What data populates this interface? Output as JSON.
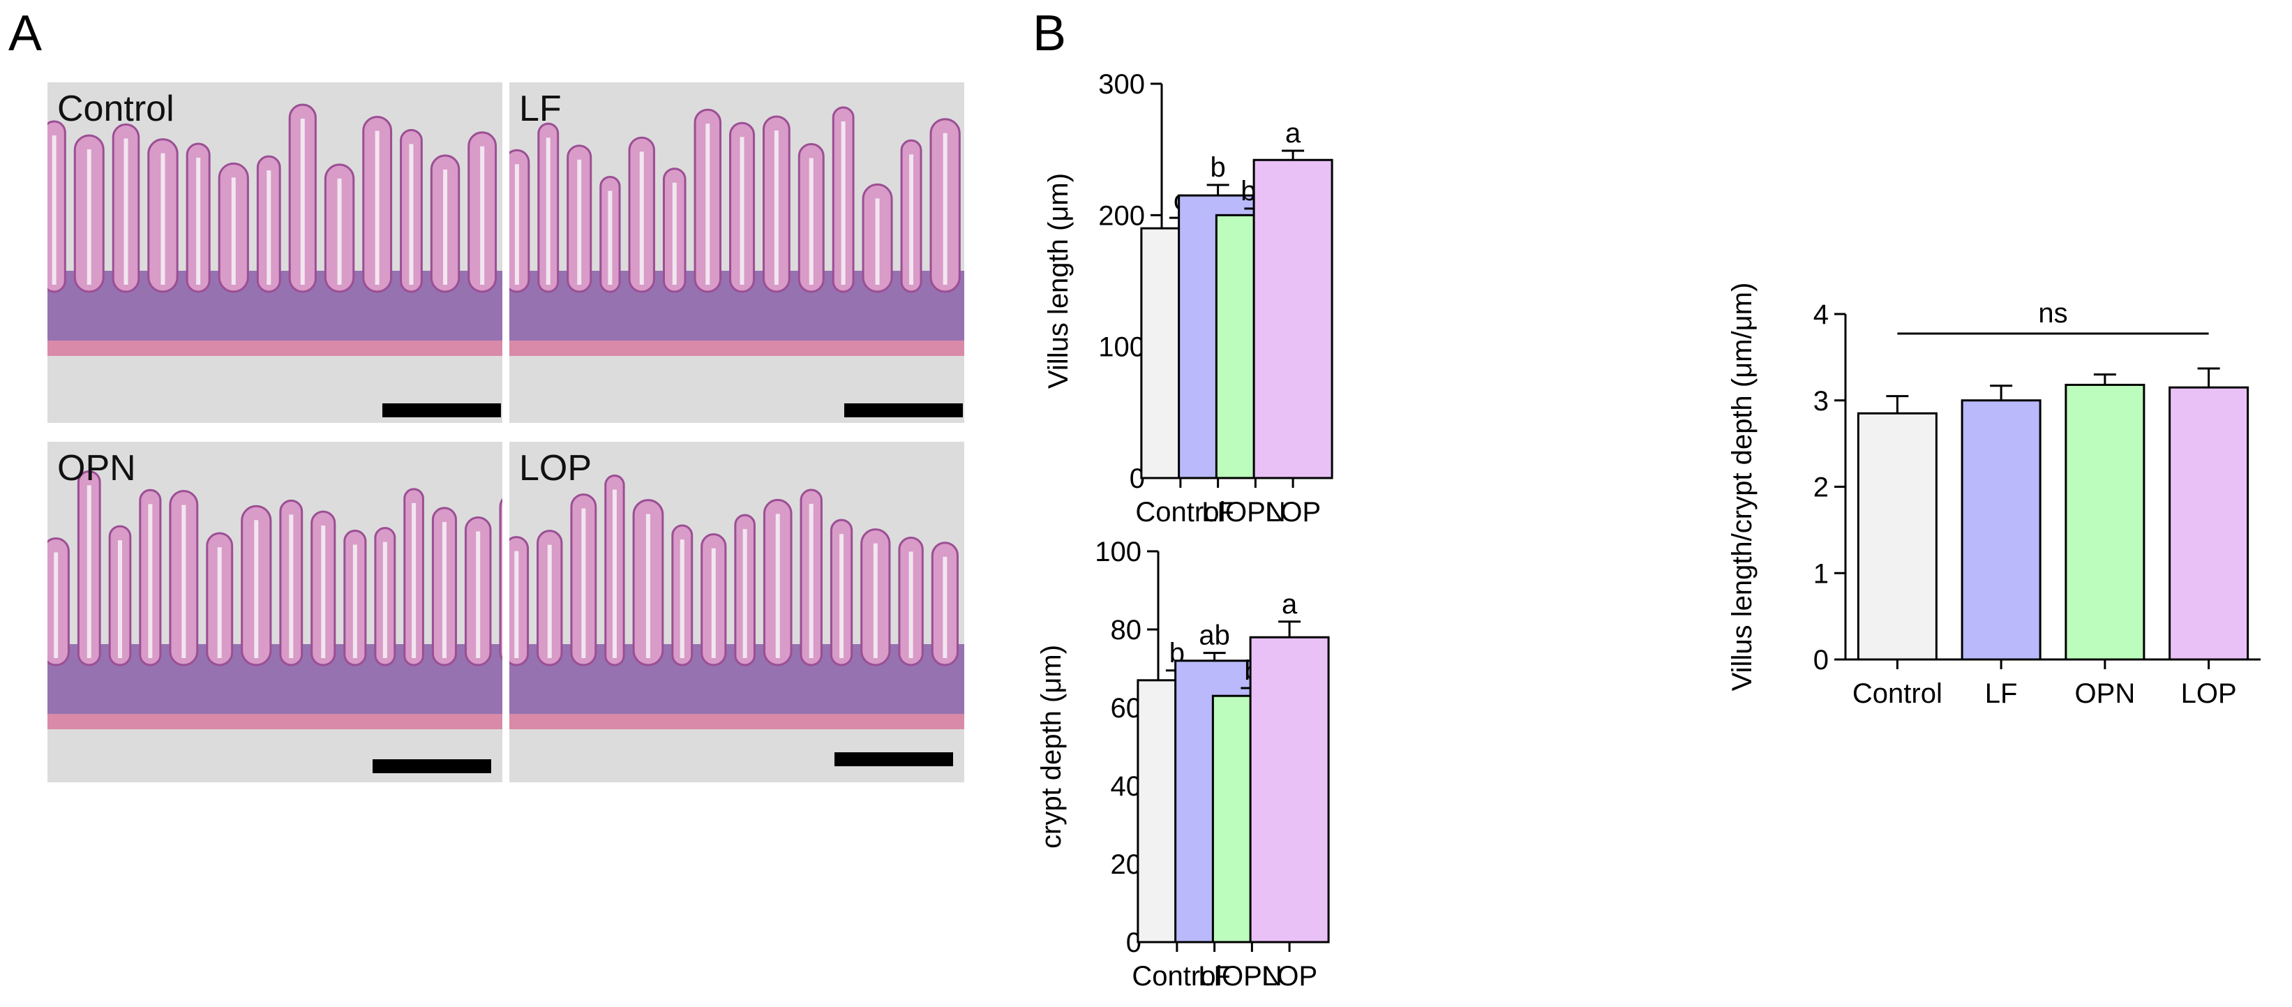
{
  "panels": {
    "a_label": "A",
    "b_label": "B"
  },
  "micrographs": [
    {
      "label": "Control"
    },
    {
      "label": "LF"
    },
    {
      "label": "OPN"
    },
    {
      "label": "LOP"
    }
  ],
  "colors": {
    "Control": "#f2f2f2",
    "LF": "#b9b9fb",
    "OPN": "#bcfcbc",
    "LOP": "#e9c1f7",
    "tissue_pink": "#d99bc8",
    "tissue_purple": "#8a5fa8",
    "background_gray": "#dcdcdc"
  },
  "chart_data": [
    {
      "type": "bar",
      "categories": [
        "Control",
        "LF",
        "OPN",
        "LOP"
      ],
      "values": [
        190,
        215,
        200,
        242
      ],
      "errors": [
        8,
        8,
        5,
        7
      ],
      "annotations": [
        "c",
        "b",
        "bc",
        "a"
      ],
      "ylabel": "Villus length (μm)",
      "ylim": [
        0,
        300
      ],
      "yticks": [
        0,
        100,
        200,
        300
      ]
    },
    {
      "type": "bar",
      "categories": [
        "Control",
        "LF",
        "OPN",
        "LOP"
      ],
      "values": [
        67,
        72,
        63,
        78
      ],
      "errors": [
        2.5,
        2,
        2,
        4
      ],
      "annotations": [
        "b",
        "ab",
        "b",
        "a"
      ],
      "ylabel": "crypt depth (μm)",
      "ylim": [
        0,
        100
      ],
      "yticks": [
        0,
        20,
        40,
        60,
        80,
        100
      ]
    },
    {
      "type": "bar",
      "categories": [
        "Control",
        "LF",
        "OPN",
        "LOP"
      ],
      "values": [
        2.85,
        3.0,
        3.18,
        3.15
      ],
      "errors": [
        0.2,
        0.17,
        0.12,
        0.22
      ],
      "annotations": [],
      "significance": "ns",
      "ylabel": "Villus length/crypt depth (μm/μm)",
      "ylim": [
        0,
        4
      ],
      "yticks": [
        0,
        1,
        2,
        3,
        4
      ]
    }
  ]
}
